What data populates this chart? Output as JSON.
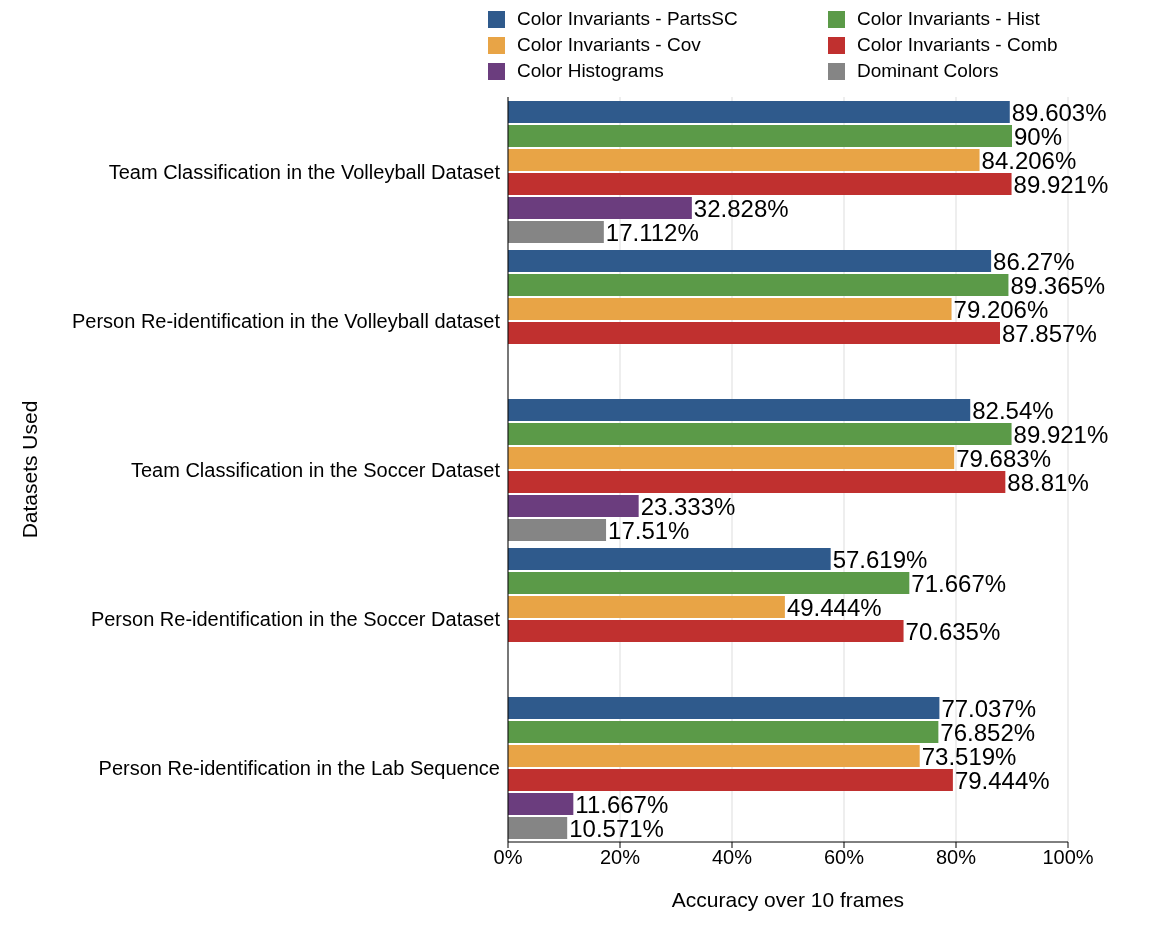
{
  "chart_data": {
    "type": "bar",
    "orientation": "horizontal",
    "xlabel": "Accuracy over 10 frames",
    "ylabel": "Datasets Used",
    "categories": [
      "Team Classification in the Volleyball Dataset",
      "Person Re-identification in the Volleyball dataset",
      "Team Classification in the Soccer Dataset",
      "Person Re-identification in the Soccer Dataset",
      "Person Re-identification in the Lab Sequence"
    ],
    "series": [
      {
        "name": "Color Invariants - PartsSC",
        "color": "#2f5a8c",
        "values": [
          89.603,
          86.27,
          82.54,
          57.619,
          77.037
        ],
        "value_labels": [
          "89.603%",
          "86.27%",
          "82.54%",
          "57.619%",
          "77.037%"
        ]
      },
      {
        "name": "Color Invariants - Hist",
        "color": "#5b9a48",
        "values": [
          90,
          89.365,
          89.921,
          71.667,
          76.852
        ],
        "value_labels": [
          "90%",
          "89.365%",
          "89.921%",
          "71.667%",
          "76.852%"
        ]
      },
      {
        "name": "Color Invariants - Cov",
        "color": "#e8a446",
        "values": [
          84.206,
          79.206,
          79.683,
          49.444,
          73.519
        ],
        "value_labels": [
          "84.206%",
          "79.206%",
          "79.683%",
          "49.444%",
          "73.519%"
        ]
      },
      {
        "name": "Color Invariants - Comb",
        "color": "#c0302f",
        "values": [
          89.921,
          87.857,
          88.81,
          70.635,
          79.444
        ],
        "value_labels": [
          "89.921%",
          "87.857%",
          "88.81%",
          "70.635%",
          "79.444%"
        ]
      },
      {
        "name": "Color Histograms",
        "color": "#6b3d7e",
        "values": [
          32.828,
          null,
          23.333,
          null,
          11.667
        ],
        "value_labels": [
          "32.828%",
          null,
          "23.333%",
          null,
          "11.667%"
        ]
      },
      {
        "name": "Dominant Colors",
        "color": "#858585",
        "values": [
          17.112,
          null,
          17.51,
          null,
          10.571
        ],
        "value_labels": [
          "17.112%",
          null,
          "17.51%",
          null,
          "10.571%"
        ]
      }
    ],
    "xlim": [
      0,
      100
    ],
    "xticks": [
      {
        "value": 0,
        "label": "0%"
      },
      {
        "value": 20,
        "label": "20%"
      },
      {
        "value": 40,
        "label": "40%"
      },
      {
        "value": 60,
        "label": "60%"
      },
      {
        "value": 80,
        "label": "80%"
      },
      {
        "value": 100,
        "label": "100%"
      }
    ],
    "grid": "x",
    "legend": "top"
  }
}
